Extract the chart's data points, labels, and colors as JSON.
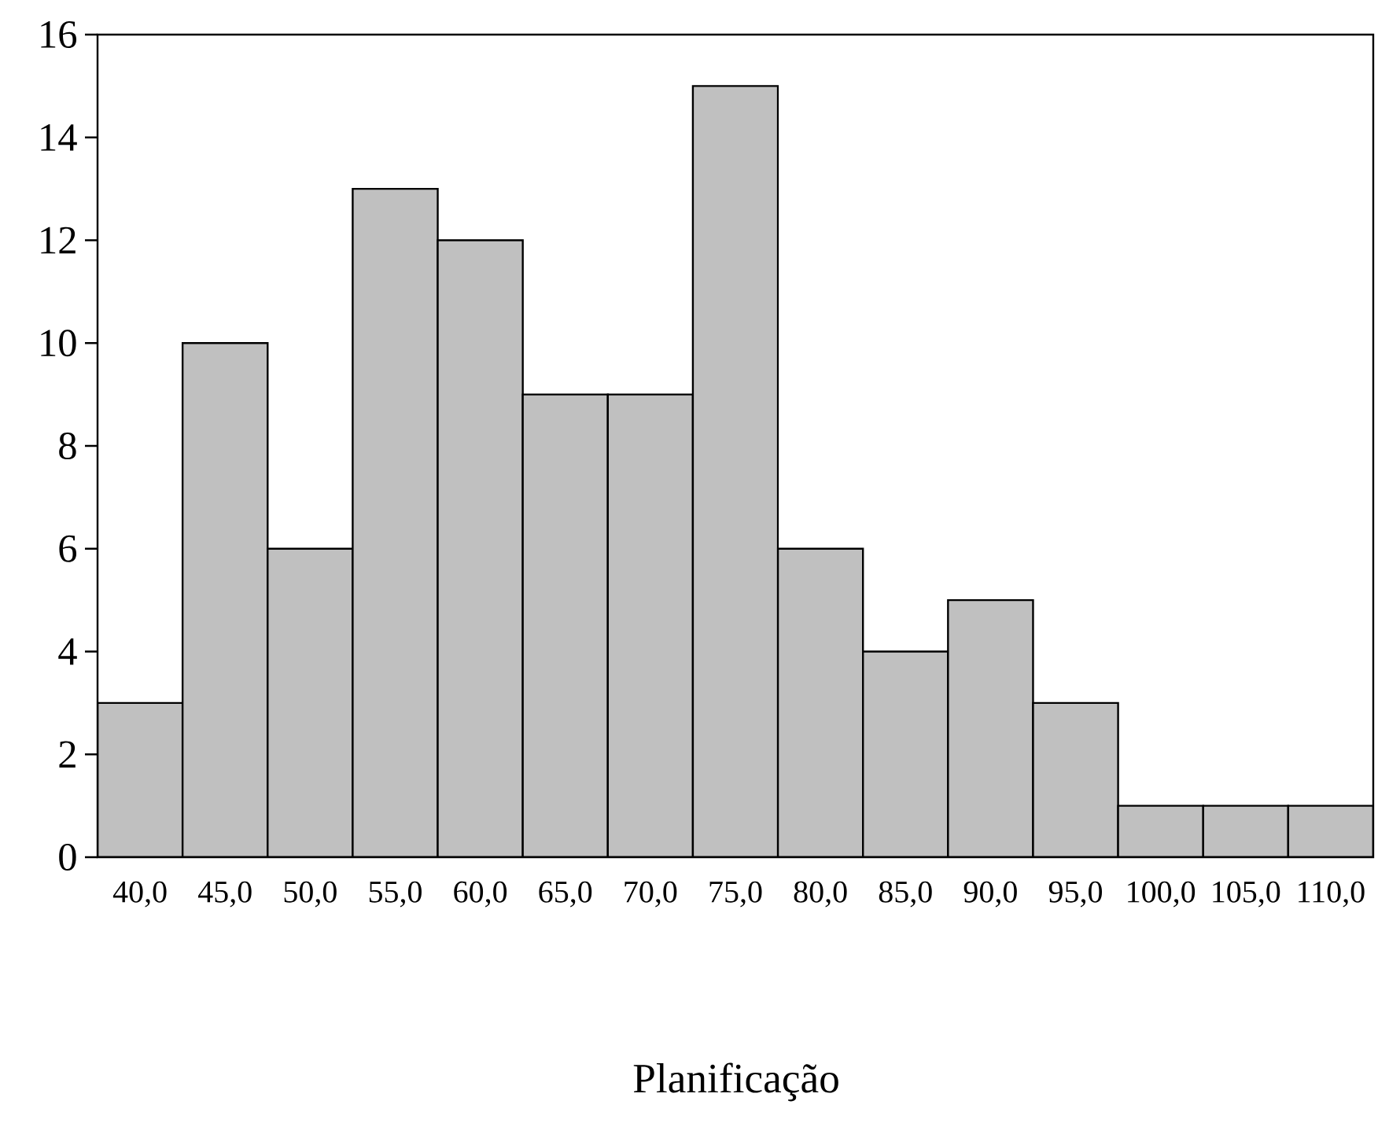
{
  "chart_data": {
    "type": "histogram",
    "xlabel": "Planificação",
    "bins": [
      37.5,
      42.5,
      47.5,
      52.5,
      57.5,
      62.5,
      67.5,
      72.5,
      77.5,
      82.5,
      87.5,
      92.5,
      97.5,
      102.5,
      107.5,
      112.5
    ],
    "values": [
      3,
      10,
      6,
      13,
      12,
      9,
      9,
      15,
      6,
      4,
      5,
      3,
      1,
      1,
      1
    ],
    "color": "#c0c0c0",
    "xlim": [
      37.5,
      112.5
    ],
    "xticks": [
      {
        "value": 40,
        "label": "40,0"
      },
      {
        "value": 45,
        "label": "45,0"
      },
      {
        "value": 50,
        "label": "50,0"
      },
      {
        "value": 55,
        "label": "55,0"
      },
      {
        "value": 60,
        "label": "60,0"
      },
      {
        "value": 65,
        "label": "65,0"
      },
      {
        "value": 70,
        "label": "70,0"
      },
      {
        "value": 75,
        "label": "75,0"
      },
      {
        "value": 80,
        "label": "80,0"
      },
      {
        "value": 85,
        "label": "85,0"
      },
      {
        "value": 90,
        "label": "90,0"
      },
      {
        "value": 95,
        "label": "95,0"
      },
      {
        "value": 100,
        "label": "100,0"
      },
      {
        "value": 105,
        "label": "105,0"
      },
      {
        "value": 110,
        "label": "110,0"
      }
    ],
    "ylim": [
      0,
      16
    ],
    "yticks": [
      0,
      2,
      4,
      6,
      8,
      10,
      12,
      14,
      16
    ]
  }
}
